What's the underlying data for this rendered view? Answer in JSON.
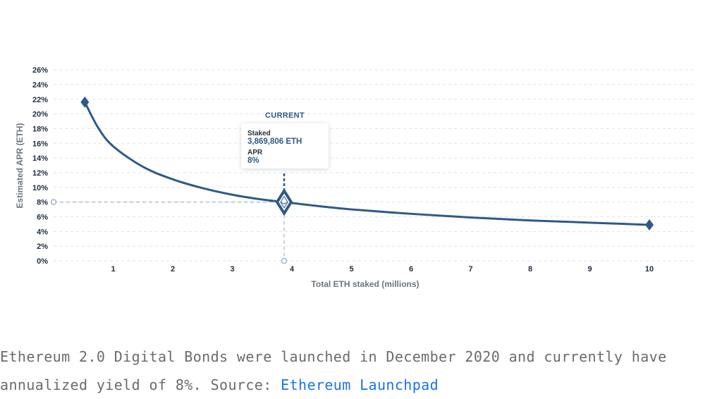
{
  "chart_data": {
    "type": "line",
    "xlabel": "Total ETH staked (millions)",
    "ylabel": "Estimated APR (ETH)",
    "x_ticks": [
      1,
      2,
      3,
      4,
      5,
      6,
      7,
      8,
      9,
      10
    ],
    "y_ticks": [
      "0%",
      "2%",
      "4%",
      "6%",
      "8%",
      "10%",
      "12%",
      "14%",
      "16%",
      "18%",
      "20%",
      "22%",
      "24%",
      "26%"
    ],
    "xlim": [
      0,
      11
    ],
    "ylim": [
      0,
      26
    ],
    "grid": true,
    "series": [
      {
        "x": [
          0.524288,
          0.75,
          1,
          1.5,
          2,
          2.5,
          3,
          3.5,
          3.869806,
          4.5,
          5,
          6,
          7,
          8,
          9,
          10
        ],
        "y": [
          21.6,
          18.1,
          15.6,
          12.8,
          11.1,
          9.9,
          9.0,
          8.35,
          8.0,
          7.4,
          7.0,
          6.4,
          5.9,
          5.5,
          5.2,
          4.9
        ],
        "color": "#2e5a88"
      }
    ],
    "current": {
      "heading": "CURRENT",
      "x": 3.869806,
      "y": 8,
      "staked_label": "Staked",
      "staked_value": "3,869,806 ETH",
      "apr_label": "APR",
      "apr_value": "8%"
    }
  },
  "caption": {
    "text": "Ethereum 2.0 Digital Bonds were launched in December 2020 and currently have annualized yield of 8%. Source: ",
    "link_text": "Ethereum Launchpad"
  }
}
